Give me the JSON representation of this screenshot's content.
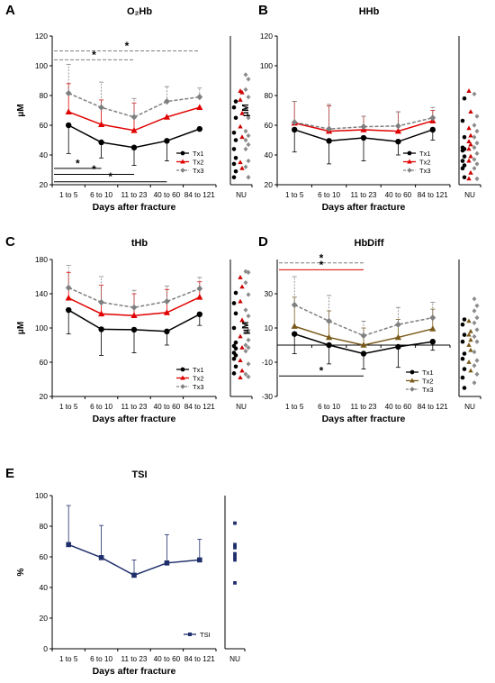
{
  "figure": {
    "xlabel": "Days after fracture",
    "categories": [
      "1 to 5",
      "6 to 10",
      "11 to 23",
      "40 to 60",
      "84 to 121"
    ],
    "nu_label": "NU",
    "colors": {
      "Tx1": "#000000",
      "Tx2": "#e00000",
      "Tx3": "#7f7f7f",
      "TSI": "#1f2f6b",
      "Tx2_hbdiff": "#7a5a1a",
      "NU_Tx3": "#8c8c8c",
      "NU_Tx2": "#cc0000"
    }
  },
  "chart_data": [
    {
      "panel": "A",
      "type": "line",
      "title": "O₂Hb",
      "ylabel": "μM",
      "ylim": [
        20,
        120
      ],
      "yticks": [
        20,
        40,
        60,
        80,
        100,
        120
      ],
      "categories": [
        "1 to 5",
        "6 to 10",
        "11 to 23",
        "40 to 60",
        "84 to 121"
      ],
      "series": [
        {
          "name": "Tx1",
          "marker": "circle",
          "style": "solid",
          "values": [
            60,
            48.5,
            45,
            49.5,
            57.5
          ],
          "err_low": [
            41,
            38,
            33,
            36,
            null
          ],
          "err_high": [
            null,
            null,
            null,
            null,
            null
          ]
        },
        {
          "name": "Tx2",
          "marker": "triangle",
          "style": "solid",
          "values": [
            69,
            60.5,
            56.5,
            65.5,
            72
          ],
          "err_low": [
            null,
            null,
            null,
            null,
            null
          ],
          "err_high": [
            88,
            77,
            75,
            null,
            null
          ]
        },
        {
          "name": "Tx3",
          "marker": "diamond",
          "style": "dashed",
          "values": [
            81.5,
            72,
            65.5,
            76,
            79
          ],
          "err_low": [
            null,
            null,
            null,
            null,
            null
          ],
          "err_high": [
            101,
            89,
            78,
            86,
            85
          ]
        }
      ],
      "legend": "bottom-right",
      "significance": [
        {
          "label": "*",
          "from": 0,
          "to": 4,
          "y": 110,
          "style": "dashed",
          "color": "#7f7f7f"
        },
        {
          "label": "*",
          "from": 0,
          "to": 2,
          "y": 104,
          "style": "dashed",
          "color": "#7f7f7f"
        },
        {
          "label": "*",
          "from": 0,
          "to": 1,
          "y": 31,
          "style": "solid",
          "color": "#000000"
        },
        {
          "label": "*",
          "from": 0,
          "to": 2,
          "y": 27,
          "style": "solid",
          "color": "#000000"
        },
        {
          "label": "*",
          "from": 0,
          "to": 3,
          "y": 22,
          "style": "solid",
          "color": "#000000"
        }
      ],
      "nu": {
        "Tx1": [
          76,
          72,
          65,
          55,
          50,
          44,
          38,
          34,
          29,
          25
        ],
        "Tx2": [
          83,
          82,
          77,
          68,
          59,
          52,
          35,
          31
        ],
        "Tx3": [
          94,
          91,
          84,
          79,
          71,
          65,
          56,
          53,
          50,
          47,
          44,
          36,
          32,
          25
        ]
      }
    },
    {
      "panel": "B",
      "type": "line",
      "title": "HHb",
      "ylabel": "μM",
      "ylim": [
        20,
        120
      ],
      "yticks": [
        20,
        40,
        60,
        80,
        100,
        120
      ],
      "categories": [
        "1 to 5",
        "6 to 10",
        "11 to 23",
        "40 to 60",
        "84 to 121"
      ],
      "series": [
        {
          "name": "Tx1",
          "marker": "circle",
          "style": "solid",
          "values": [
            57,
            49.5,
            51.5,
            49,
            57
          ],
          "err_low": [
            42,
            34,
            36,
            40,
            50
          ],
          "err_high": [
            null,
            null,
            null,
            null,
            null
          ]
        },
        {
          "name": "Tx2",
          "marker": "triangle",
          "style": "solid",
          "values": [
            61.5,
            56,
            57,
            56,
            63
          ],
          "err_low": [
            null,
            null,
            null,
            null,
            null
          ],
          "err_high": [
            76,
            73,
            66,
            69,
            70
          ]
        },
        {
          "name": "Tx3",
          "marker": "diamond",
          "style": "dashed",
          "values": [
            62,
            57.5,
            59,
            59.5,
            65
          ],
          "err_low": [
            null,
            null,
            null,
            null,
            null
          ],
          "err_high": [
            76,
            74,
            66,
            69,
            72
          ]
        }
      ],
      "legend": "bottom-right",
      "significance": [],
      "nu": {
        "Tx1": [
          78,
          63,
          52,
          45,
          44,
          43,
          39,
          36,
          33,
          31,
          25
        ],
        "Tx2": [
          83,
          69,
          58,
          53,
          49,
          47,
          44,
          39,
          36,
          28,
          24
        ],
        "Tx3": [
          81,
          66,
          60,
          56,
          52,
          48,
          45,
          41,
          37,
          34,
          31,
          24
        ]
      }
    },
    {
      "panel": "C",
      "type": "line",
      "title": "tHb",
      "ylabel": "μM",
      "ylim": [
        20,
        180
      ],
      "yticks": [
        20,
        60,
        100,
        140,
        180
      ],
      "categories": [
        "1 to 5",
        "6 to 10",
        "11 to 23",
        "40 to 60",
        "84 to 121"
      ],
      "series": [
        {
          "name": "Tx1",
          "marker": "circle",
          "style": "solid",
          "values": [
            121,
            98.5,
            98,
            96,
            116
          ],
          "err_low": [
            93,
            68,
            71,
            80,
            103
          ],
          "err_high": [
            null,
            null,
            null,
            null,
            null
          ]
        },
        {
          "name": "Tx2",
          "marker": "triangle",
          "style": "solid",
          "values": [
            135,
            116.5,
            114.5,
            118,
            136
          ],
          "err_low": [
            null,
            null,
            null,
            null,
            null
          ],
          "err_high": [
            165,
            150,
            140,
            145,
            154
          ]
        },
        {
          "name": "Tx3",
          "marker": "diamond",
          "style": "dashed",
          "values": [
            147,
            130,
            124,
            131,
            146
          ],
          "err_low": [
            null,
            null,
            null,
            null,
            null
          ],
          "err_high": [
            173,
            160,
            144,
            149,
            159
          ]
        }
      ],
      "legend": "bottom-right",
      "significance": [],
      "nu": {
        "Tx1": [
          141,
          129,
          117,
          100,
          83,
          79,
          76,
          71,
          68,
          64,
          55,
          47
        ],
        "Tx2": [
          159,
          148,
          131,
          109,
          90,
          77,
          62,
          50,
          42
        ],
        "Tx3": [
          166,
          165,
          153,
          139,
          121,
          114,
          104,
          97,
          95,
          86,
          80,
          77,
          73,
          58,
          46,
          43
        ]
      }
    },
    {
      "panel": "D",
      "type": "line",
      "title": "HbDiff",
      "ylabel": "μM",
      "ylim": [
        -30,
        50
      ],
      "yticks": [
        -30,
        -10,
        10,
        30
      ],
      "categories": [
        "1 to 5",
        "6 to 10",
        "11 to 23",
        "40 to 60",
        "84 to 121"
      ],
      "series": [
        {
          "name": "Tx1",
          "marker": "circle",
          "style": "solid",
          "values": [
            6.5,
            0,
            -5,
            -1,
            2
          ],
          "err_low": [
            -5,
            -11,
            -14,
            -13,
            -3
          ],
          "err_high": [
            null,
            null,
            null,
            null,
            null
          ]
        },
        {
          "name": "Tx2",
          "marker": "triangle",
          "style": "solid",
          "values": [
            11,
            4.5,
            0,
            4.5,
            9.5
          ],
          "err_low": [
            null,
            null,
            null,
            null,
            null
          ],
          "err_high": [
            28,
            20,
            10,
            15,
            21
          ]
        },
        {
          "name": "Tx3",
          "marker": "diamond",
          "style": "dashed",
          "values": [
            23.5,
            14,
            5.5,
            12,
            16
          ],
          "err_low": [
            null,
            null,
            null,
            null,
            null
          ],
          "err_high": [
            40,
            29,
            14,
            22,
            25
          ]
        }
      ],
      "legend": "bottom-right",
      "significance": [
        {
          "label": "*",
          "from": 0,
          "to": 2,
          "y": 48,
          "style": "dashed",
          "color": "#7f7f7f"
        },
        {
          "label": "*",
          "from": 0,
          "to": 2,
          "y": 44,
          "style": "solid",
          "color": "#e00000"
        },
        {
          "label": "*",
          "from": 0,
          "to": 2,
          "y": -18,
          "style": "solid",
          "color": "#000000"
        }
      ],
      "nu": {
        "Tx1": [
          15,
          12,
          6,
          2,
          -5,
          -8,
          -14,
          -19,
          -25
        ],
        "Tx2": [
          14,
          8,
          6,
          3,
          0,
          -3,
          -10,
          -15
        ],
        "Tx3": [
          27,
          23,
          20,
          16,
          13,
          9,
          5,
          2,
          -4,
          -9,
          -12,
          -17,
          -22
        ]
      }
    },
    {
      "panel": "E",
      "type": "line",
      "title": "TSI",
      "ylabel": "%",
      "ylim": [
        0,
        100
      ],
      "yticks": [
        0,
        20,
        40,
        60,
        80,
        100
      ],
      "categories": [
        "1 to 5",
        "6 to 10",
        "11 to 23",
        "40 to 60",
        "84 to 121"
      ],
      "series": [
        {
          "name": "TSI",
          "marker": "square",
          "style": "solid",
          "values": [
            68,
            59.5,
            48,
            56,
            58
          ],
          "err_low": [
            null,
            null,
            null,
            null,
            null
          ],
          "err_high": [
            93.5,
            80.5,
            58,
            74.5,
            71.5
          ]
        }
      ],
      "legend": "bottom-right",
      "significance": [],
      "nu": {
        "TSI": [
          82,
          68,
          66,
          62,
          60,
          58,
          43
        ]
      }
    }
  ]
}
